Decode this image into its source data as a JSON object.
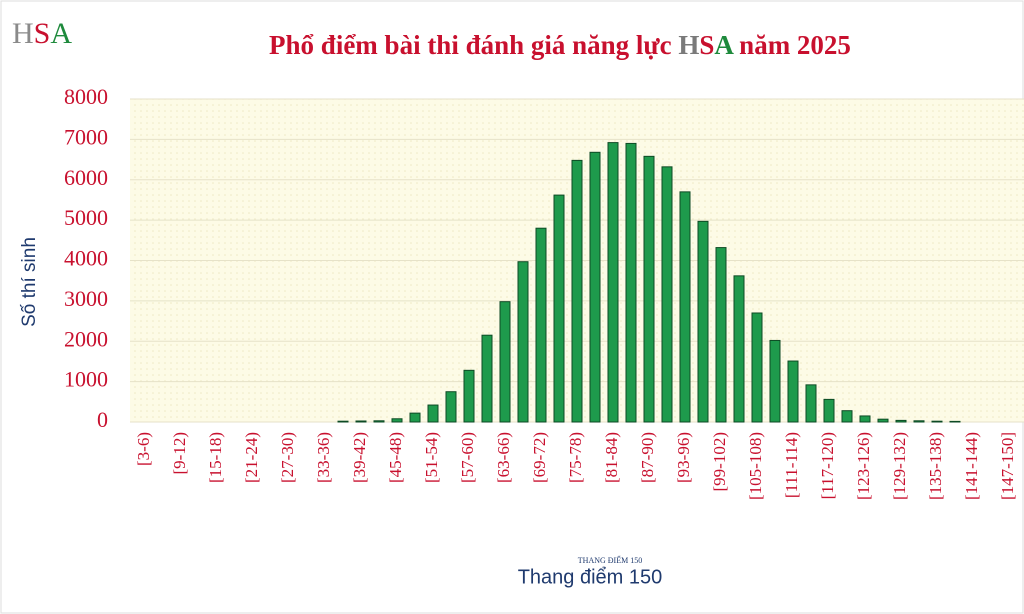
{
  "chart_data": {
    "type": "bar",
    "logo": [
      "H",
      "S",
      "A"
    ],
    "title": [
      "Phổ điểm bài thi đánh giá năng lực ",
      "H",
      "S",
      "A",
      " năm 2025"
    ],
    "y_label": "Số thí sinh",
    "x_label": "Thang điểm 150",
    "watermark": "THANG ĐIỂM 150",
    "categories": [
      null,
      "[3-6)",
      null,
      "[9-12)",
      null,
      "[15-18)",
      null,
      "[21-24)",
      null,
      "[27-30)",
      null,
      "[33-36)",
      null,
      "[39-42)",
      null,
      "[45-48)",
      null,
      "[51-54)",
      null,
      "[57-60)",
      null,
      "[63-66)",
      null,
      "[69-72)",
      null,
      "[75-78)",
      null,
      "[81-84)",
      null,
      "[87-90)",
      null,
      "[93-96)",
      null,
      "[99-102)",
      null,
      "[105-108)",
      null,
      "[111-114)",
      null,
      "[117-120)",
      null,
      "[123-126)",
      null,
      "[129-132)",
      null,
      "[135-138)",
      null,
      "[141-144)",
      null,
      "[147-150]"
    ],
    "values": [
      0,
      0,
      0,
      0,
      0,
      0,
      0,
      0,
      0,
      0,
      0,
      0,
      20,
      25,
      30,
      80,
      220,
      420,
      750,
      1280,
      2150,
      2980,
      3970,
      4800,
      5620,
      6480,
      6680,
      6920,
      6900,
      6580,
      6320,
      5700,
      4970,
      4320,
      3620,
      2700,
      2020,
      1510,
      920,
      560,
      280,
      150,
      70,
      40,
      30,
      20,
      15,
      0,
      0,
      0
    ],
    "color": "#1e9a4c",
    "ylim": [
      0,
      8000
    ],
    "yticks": [
      0,
      1000,
      2000,
      3000,
      4000,
      5000,
      6000,
      7000,
      8000
    ],
    "grid": true
  }
}
